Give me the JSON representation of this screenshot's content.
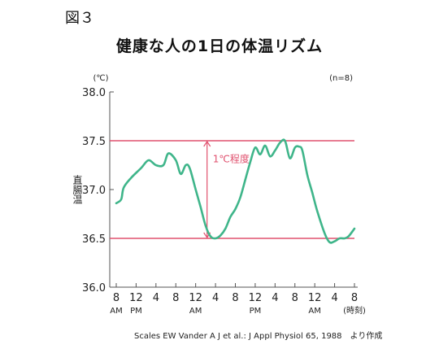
{
  "figure_label": "図３",
  "chart_data": {
    "type": "line",
    "title": "健康な人の1日の体温リズム",
    "unit_label": "(℃)",
    "sample_note": "(n=8)",
    "ylabel": "直腸温",
    "ylim": [
      36.0,
      38.0
    ],
    "yticks": [
      36.0,
      36.5,
      37.0,
      37.5,
      38.0
    ],
    "ytick_labels": [
      "36.0",
      "36.5",
      "37.0",
      "37.5",
      "38.0"
    ],
    "xlim": [
      0,
      48
    ],
    "xticks": [
      0,
      4,
      8,
      12,
      16,
      20,
      24,
      28,
      32,
      36,
      40,
      44,
      48
    ],
    "xtick_labels": [
      "8",
      "12",
      "4",
      "8",
      "12",
      "4",
      "8",
      "12",
      "4",
      "8",
      "12",
      "4",
      "8"
    ],
    "xtick_sublabels": [
      "AM",
      "PM",
      "",
      "",
      "AM",
      "",
      "",
      "PM",
      "",
      "",
      "AM",
      "",
      "(時刻)"
    ],
    "grid": false,
    "reference_lines": [
      {
        "y": 37.5,
        "color": "#e0506e"
      },
      {
        "y": 36.5,
        "color": "#e0506e"
      }
    ],
    "annotation": {
      "text": "1℃程度",
      "x": 18.3,
      "y_from": 36.5,
      "y_to": 37.5,
      "color": "#e0506e"
    },
    "series": [
      {
        "color": "#3fb58a",
        "x": [
          0,
          1,
          1.5,
          3,
          5,
          6.5,
          8,
          9.5,
          10.5,
          12,
          13,
          14,
          14.8,
          16,
          17,
          18,
          19,
          20,
          21,
          22,
          23,
          24,
          25,
          26,
          27,
          28,
          29,
          30,
          31,
          32,
          33,
          34,
          35,
          36,
          36.8,
          37.5,
          38.5,
          39.5,
          40.5,
          42,
          43,
          44,
          45,
          46,
          46.8,
          48
        ],
        "y": [
          36.86,
          36.9,
          37.02,
          37.12,
          37.22,
          37.3,
          37.25,
          37.25,
          37.37,
          37.3,
          37.16,
          37.25,
          37.22,
          37.0,
          36.82,
          36.63,
          36.52,
          36.5,
          36.53,
          36.6,
          36.72,
          36.8,
          36.92,
          37.1,
          37.28,
          37.43,
          37.36,
          37.45,
          37.34,
          37.4,
          37.48,
          37.5,
          37.32,
          37.43,
          37.44,
          37.4,
          37.15,
          36.97,
          36.78,
          36.55,
          36.46,
          36.47,
          36.5,
          36.5,
          36.52,
          36.6
        ]
      }
    ]
  },
  "source_text": "Scales EW Vander A J et al.: J Appl Physiol 65, 1988　より作成"
}
